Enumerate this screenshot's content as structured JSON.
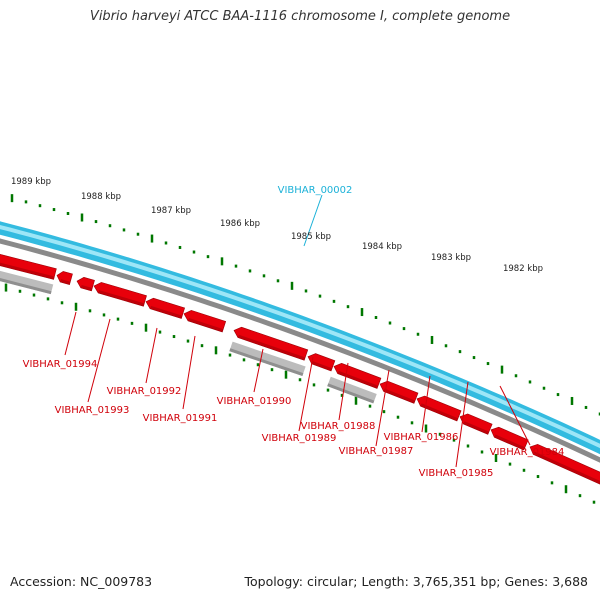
{
  "title": "Vibrio harveyi ATCC BAA-1116 chromosome I, complete genome",
  "footer": {
    "accession_label": "Accession:",
    "accession": "NC_009783",
    "topology_label": "Topology:",
    "topology": "circular",
    "length_label": "Length:",
    "length": "3,765,351 bp",
    "genes_label": "Genes:",
    "genes": "3,688"
  },
  "colors": {
    "background": "#ffffff",
    "backbone_outer": "#33bbe0",
    "backbone_inner": "#9de6f7",
    "separator_line": "#8a8a8a",
    "gene": "#e8000b",
    "gene_dark": "#9e0007",
    "gene_alt": "#bcbcbc",
    "gene_alt_dark": "#8f8f8f",
    "tick": "#007700",
    "label_highlight": "#1bb1d8",
    "label_gene": "#d0000a",
    "label_scale": "#222222"
  },
  "scale_labels": [
    "1989 kbp",
    "1988 kbp",
    "1987 kbp",
    "1986 kbp",
    "1985 kbp",
    "1984 kbp",
    "1983 kbp",
    "1982 kbp"
  ],
  "highlight_label": "VIBHAR_00002",
  "gene_labels": [
    "VIBHAR_01994",
    "VIBHAR_01993",
    "VIBHAR_01992",
    "VIBHAR_01991",
    "VIBHAR_01990",
    "VIBHAR_01989",
    "VIBHAR_01988",
    "VIBHAR_01987",
    "VIBHAR_01986",
    "VIBHAR_01985",
    "VIBHAR_01984"
  ]
}
